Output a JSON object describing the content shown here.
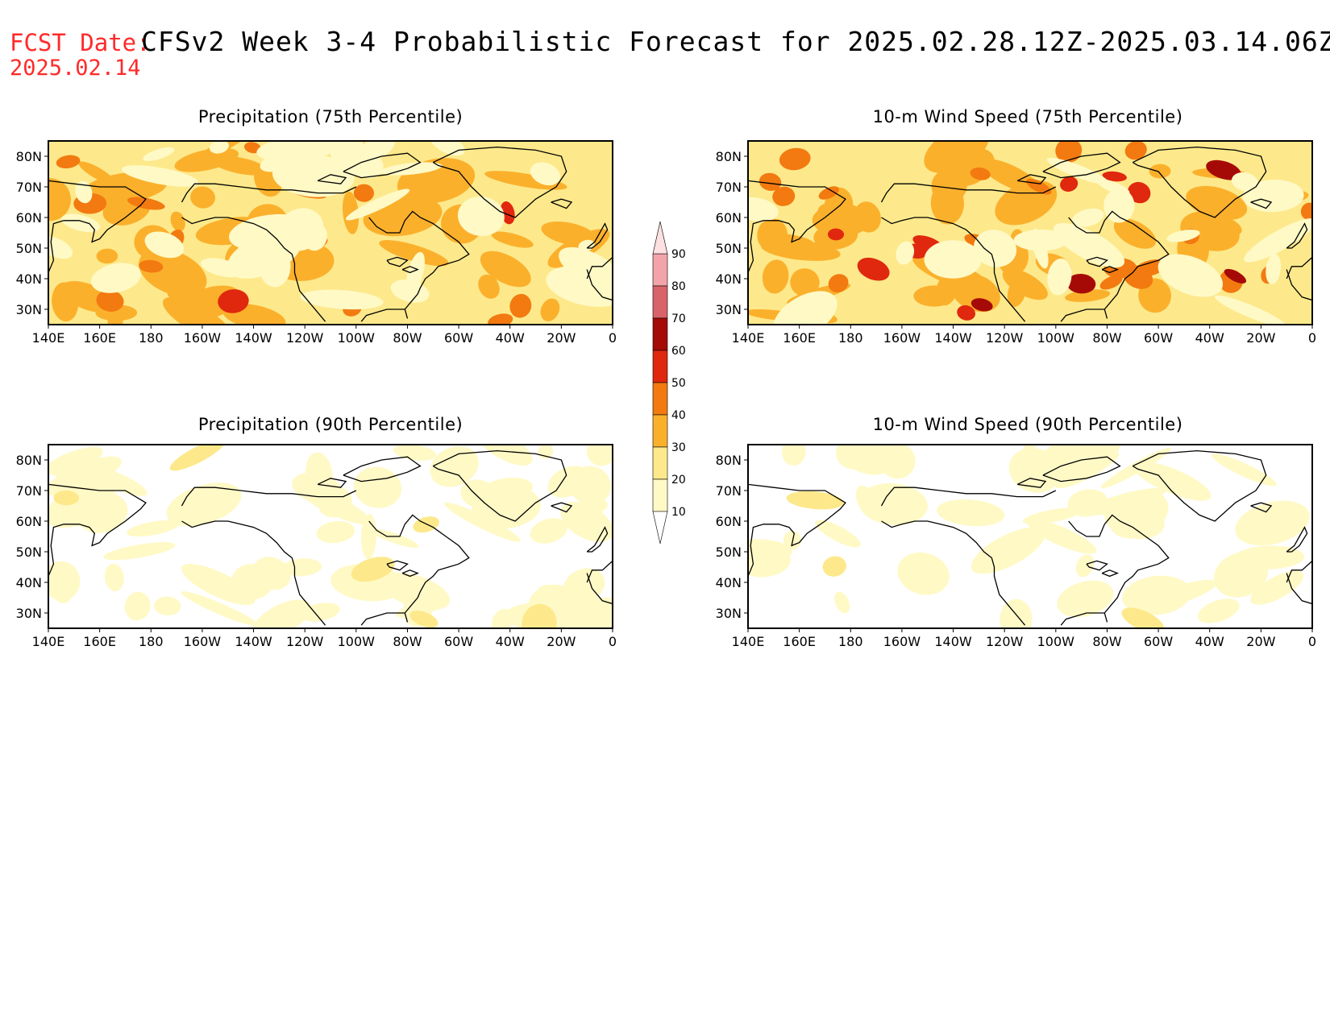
{
  "header": {
    "label": "FCST Date:",
    "title": "CFSv2 Week 3-4 Probabilistic Forecast for 2025.02.28.12Z-2025.03.14.06Z",
    "date": "2025.02.14"
  },
  "axes": {
    "lon_labels": [
      "140E",
      "160E",
      "180",
      "160W",
      "140W",
      "120W",
      "100W",
      "80W",
      "60W",
      "40W",
      "20W",
      "0"
    ],
    "lat_labels": [
      "80N",
      "70N",
      "60N",
      "50N",
      "40N",
      "30N"
    ]
  },
  "panels": [
    {
      "id": "precip75",
      "title": "Precipitation (75th Percentile)",
      "intensity": "high-moderate"
    },
    {
      "id": "wind75",
      "title": "10-m Wind Speed (75th Percentile)",
      "intensity": "high"
    },
    {
      "id": "precip90",
      "title": "Precipitation (90th Percentile)",
      "intensity": "low"
    },
    {
      "id": "wind90",
      "title": "10-m Wind Speed (90th Percentile)",
      "intensity": "very-low"
    }
  ],
  "colorbar": {
    "levels": [
      "10",
      "20",
      "30",
      "40",
      "50",
      "60",
      "70",
      "80",
      "90"
    ],
    "colors": [
      "#fff9c6",
      "#fde98b",
      "#fbb02c",
      "#f27a10",
      "#e0280e",
      "#a60a07",
      "#d9636a",
      "#f2a4aa",
      "#fde0e2"
    ]
  },
  "chart_data": {
    "type": "heatmap",
    "title": "CFSv2 Week 3-4 Probabilistic Forecast for 2025.02.28.12Z-2025.03.14.06Z",
    "colorbar_levels": [
      10,
      20,
      30,
      40,
      50,
      60,
      70,
      80,
      90
    ],
    "lon_range": [
      "140E",
      "0"
    ],
    "lat_range": [
      "25N",
      "85N"
    ],
    "panels": [
      "Precipitation (75th Percentile)",
      "10-m Wind Speed (75th Percentile)",
      "Precipitation (90th Percentile)",
      "10-m Wind Speed (90th Percentile)"
    ]
  }
}
